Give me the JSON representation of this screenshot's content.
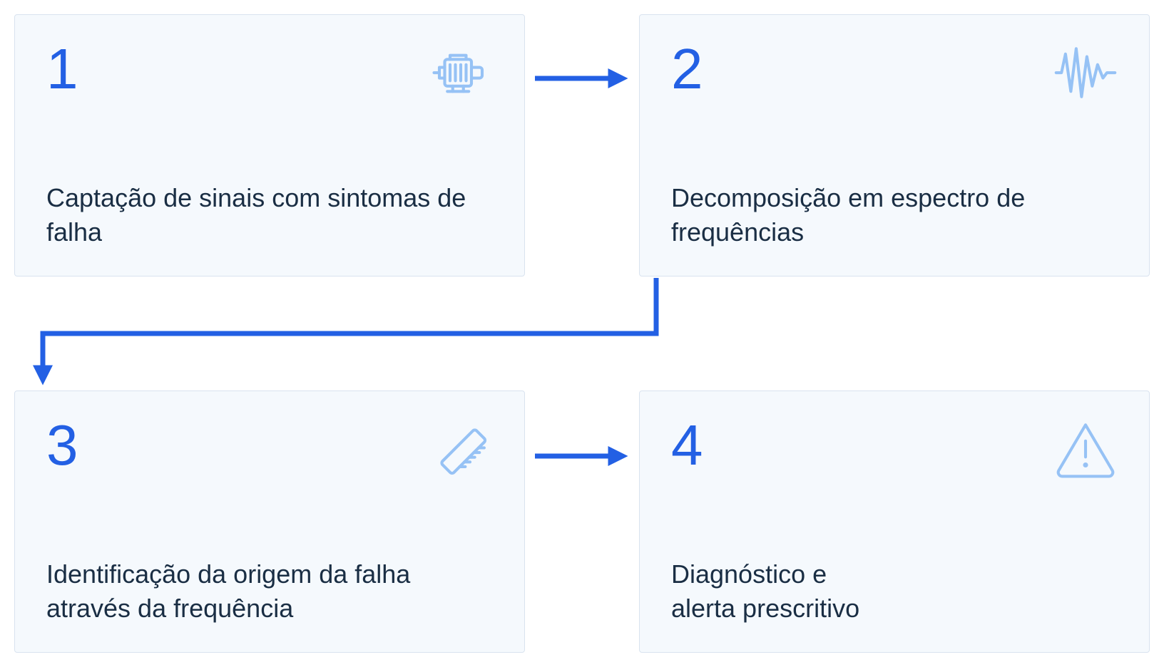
{
  "layout": {
    "type": "flowchart",
    "cards": 4,
    "card_background": "#f5f9fd",
    "card_border": "#d9e3ef",
    "number_color": "#2360e4",
    "text_color": "#1a2e44",
    "icon_color": "#96c2f5",
    "arrow_color": "#2360e4",
    "number_fontsize": 80,
    "text_fontsize": 36,
    "arrow_stroke_width": 7
  },
  "steps": [
    {
      "num": "1",
      "text": "Captação de sinais com sintomas de falha",
      "icon": "motor"
    },
    {
      "num": "2",
      "text": "Decomposição em espectro de frequências",
      "icon": "waveform"
    },
    {
      "num": "3",
      "text": "Identificação da origem da falha através da frequência",
      "icon": "ruler"
    },
    {
      "num": "4",
      "text": "Diagnóstico e\nalerta prescritivo",
      "icon": "alert"
    }
  ]
}
